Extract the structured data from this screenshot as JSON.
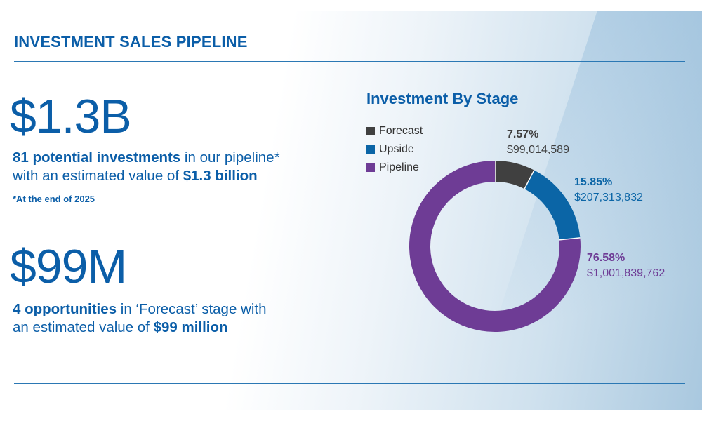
{
  "header": {
    "title": "INVESTMENT SALES PIPELINE"
  },
  "stats": {
    "total": {
      "value": "$1.3B",
      "line1_bold": "81 potential investments",
      "line1_rest": " in our pipeline*",
      "line2_pre": "with an estimated value of ",
      "line2_bold": "$1.3 billion"
    },
    "footnote": "*At the end of 2025",
    "forecast": {
      "value": "$99M",
      "line1_bold": "4 opportunities",
      "line1_rest": " in ‘Forecast’ stage with",
      "line2_pre": "an estimated value of ",
      "line2_bold": "$99 million"
    }
  },
  "chart_data": {
    "type": "pie",
    "title": "Investment By Stage",
    "legend": {
      "position": "top-left"
    },
    "categories": [
      "Forecast",
      "Upside",
      "Pipeline"
    ],
    "values": [
      99014589,
      207313832,
      1001839762
    ],
    "percent_labels": [
      "7.57%",
      "15.85%",
      "76.58%"
    ],
    "value_labels": [
      "$99,014,589",
      "$207,313,832",
      "$1,001,839,762"
    ],
    "colors": [
      "#404040",
      "#0b65a6",
      "#6e3c95"
    ]
  }
}
